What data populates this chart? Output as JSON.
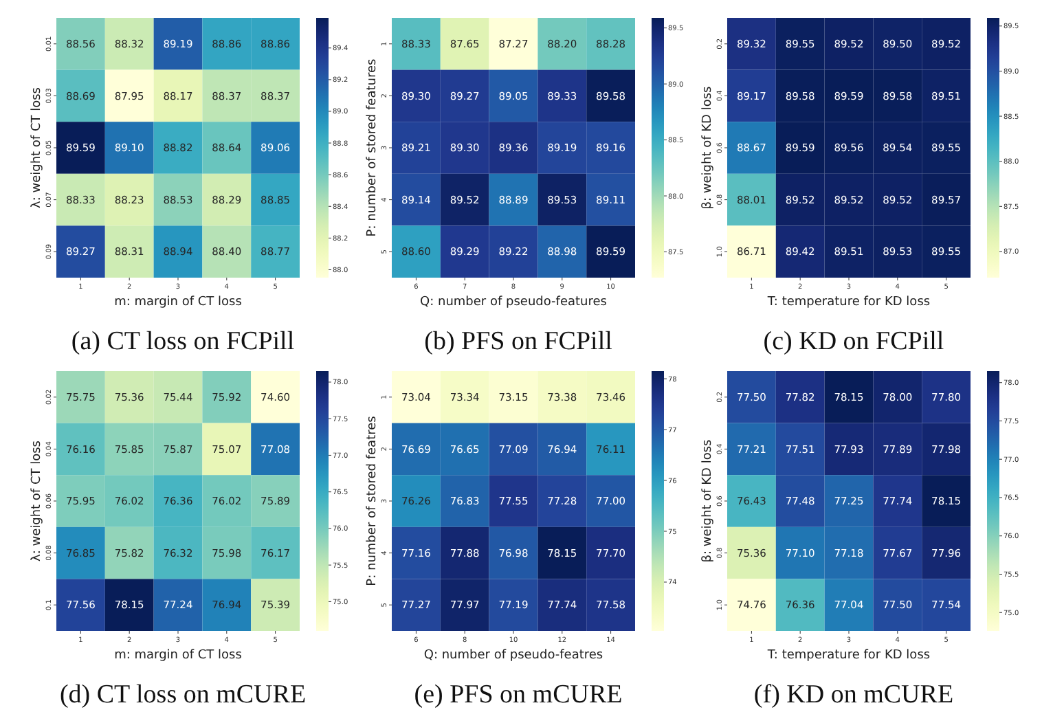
{
  "chart_data": [
    {
      "type": "heatmap",
      "title": "(a) CT loss on FCPill",
      "xlabel": "m: margin of CT loss",
      "ylabel": "λ: weight of CT loss",
      "categories": [
        "1",
        "2",
        "3",
        "4",
        "5"
      ],
      "y_categories": [
        "0.01",
        "0.03",
        "0.05",
        "0.07",
        "0.09"
      ],
      "cells": [
        [
          88.56,
          88.32,
          89.19,
          88.86,
          88.86
        ],
        [
          88.69,
          87.95,
          88.17,
          88.37,
          88.37
        ],
        [
          89.59,
          89.1,
          88.82,
          88.64,
          89.06
        ],
        [
          88.33,
          88.23,
          88.53,
          88.29,
          88.85
        ],
        [
          89.27,
          88.31,
          88.94,
          88.4,
          88.77
        ]
      ],
      "cell_labels": [
        [
          "88.56",
          "88.32",
          "89.19",
          "88.86",
          "88.86"
        ],
        [
          "88.69",
          "87.95",
          "88.17",
          "88.37",
          "88.37"
        ],
        [
          "89.59",
          "89.10",
          "88.82",
          "88.64",
          "89.06"
        ],
        [
          "88.33",
          "88.23",
          "88.53",
          "88.29",
          "88.85"
        ],
        [
          "89.27",
          "88.31",
          "88.94",
          "88.40",
          "88.77"
        ]
      ],
      "data_labels": true,
      "clim": [
        87.95,
        89.59
      ],
      "cticks": [
        {
          "value": 88,
          "label": "88.0"
        },
        {
          "value": 88.2,
          "label": "88.2"
        },
        {
          "value": 88.4,
          "label": "88.4"
        },
        {
          "value": 88.6,
          "label": "88.6"
        },
        {
          "value": 88.8,
          "label": "88.8"
        },
        {
          "value": 89,
          "label": "89.0"
        },
        {
          "value": 89.2,
          "label": "89.2"
        },
        {
          "value": 89.4,
          "label": "89.4"
        }
      ]
    },
    {
      "type": "heatmap",
      "title": "(b) PFS on FCPill",
      "xlabel": "Q: number of pseudo-features",
      "ylabel": "P: number of stored features",
      "categories": [
        "6",
        "7",
        "8",
        "9",
        "10"
      ],
      "y_categories": [
        "1",
        "2",
        "3",
        "4",
        "5"
      ],
      "cells": [
        [
          88.33,
          87.65,
          87.27,
          88.2,
          88.28
        ],
        [
          89.3,
          89.27,
          89.05,
          89.33,
          89.58
        ],
        [
          89.21,
          89.3,
          89.36,
          89.19,
          89.16
        ],
        [
          89.14,
          89.52,
          88.89,
          89.53,
          89.11
        ],
        [
          88.6,
          89.29,
          89.22,
          88.98,
          89.59
        ]
      ],
      "cell_labels": [
        [
          "88.33",
          "87.65",
          "87.27",
          "88.20",
          "88.28"
        ],
        [
          "89.30",
          "89.27",
          "89.05",
          "89.33",
          "89.58"
        ],
        [
          "89.21",
          "89.30",
          "89.36",
          "89.19",
          "89.16"
        ],
        [
          "89.14",
          "89.52",
          "88.89",
          "89.53",
          "89.11"
        ],
        [
          "88.60",
          "89.29",
          "89.22",
          "88.98",
          "89.59"
        ]
      ],
      "data_labels": true,
      "clim": [
        87.27,
        89.59
      ],
      "cticks": [
        87.5,
        {
          "value": 88,
          "label": "88.0"
        },
        88.5,
        {
          "value": 89,
          "label": "89.0"
        },
        89.5
      ]
    },
    {
      "type": "heatmap",
      "title": "(c) KD on FCPill",
      "xlabel": "T: temperature for KD loss",
      "ylabel": "β: weight of KD loss",
      "categories": [
        "1",
        "2",
        "3",
        "4",
        "5"
      ],
      "y_categories": [
        "0.2",
        "0.4",
        "0.6",
        "0.8",
        "1.0"
      ],
      "cells": [
        [
          89.32,
          89.55,
          89.52,
          89.5,
          89.52
        ],
        [
          89.17,
          89.58,
          89.59,
          89.58,
          89.51
        ],
        [
          88.67,
          89.59,
          89.56,
          89.54,
          89.55
        ],
        [
          88.01,
          89.52,
          89.52,
          89.52,
          89.57
        ],
        [
          86.71,
          89.42,
          89.51,
          89.53,
          89.55
        ]
      ],
      "cell_labels": [
        [
          "89.32",
          "89.55",
          "89.52",
          "89.50",
          "89.52"
        ],
        [
          "89.17",
          "89.58",
          "89.59",
          "89.58",
          "89.51"
        ],
        [
          "88.67",
          "89.59",
          "89.56",
          "89.54",
          "89.55"
        ],
        [
          "88.01",
          "89.52",
          "89.52",
          "89.52",
          "89.57"
        ],
        [
          "86.71",
          "89.42",
          "89.51",
          "89.53",
          "89.55"
        ]
      ],
      "data_labels": true,
      "clim": [
        86.71,
        89.59
      ],
      "cticks": [
        {
          "value": 87,
          "label": "87.0"
        },
        87.5,
        {
          "value": 88,
          "label": "88.0"
        },
        88.5,
        {
          "value": 89,
          "label": "89.0"
        },
        89.5
      ]
    },
    {
      "type": "heatmap",
      "title": "(d) CT loss on mCURE",
      "xlabel": "m: margin of CT loss",
      "ylabel": "λ: weight of CT loss",
      "categories": [
        "1",
        "2",
        "3",
        "4",
        "5"
      ],
      "y_categories": [
        "0.02",
        "0.04",
        "0.06",
        "0.08",
        "0.1"
      ],
      "cells": [
        [
          75.75,
          75.36,
          75.44,
          75.92,
          74.6
        ],
        [
          76.16,
          75.85,
          75.87,
          75.07,
          77.08
        ],
        [
          75.95,
          76.02,
          76.36,
          76.02,
          75.89
        ],
        [
          76.85,
          75.82,
          76.32,
          75.98,
          76.17
        ],
        [
          77.56,
          78.15,
          77.24,
          76.94,
          75.39
        ]
      ],
      "cell_labels": [
        [
          "75.75",
          "75.36",
          "75.44",
          "75.92",
          "74.60"
        ],
        [
          "76.16",
          "75.85",
          "75.87",
          "75.07",
          "77.08"
        ],
        [
          "75.95",
          "76.02",
          "76.36",
          "76.02",
          "75.89"
        ],
        [
          "76.85",
          "75.82",
          "76.32",
          "75.98",
          "76.17"
        ],
        [
          "77.56",
          "78.15",
          "77.24",
          "76.94",
          "75.39"
        ]
      ],
      "data_labels": true,
      "clim": [
        74.6,
        78.15
      ],
      "cticks": [
        {
          "value": 75,
          "label": "75.0"
        },
        75.5,
        {
          "value": 76,
          "label": "76.0"
        },
        76.5,
        {
          "value": 77,
          "label": "77.0"
        },
        77.5,
        {
          "value": 78,
          "label": "78.0"
        }
      ]
    },
    {
      "type": "heatmap",
      "title": "(e) PFS on mCURE",
      "xlabel": "Q: number of pseudo-featres",
      "ylabel": "P: number of stored featres",
      "categories": [
        "6",
        "8",
        "10",
        "12",
        "14"
      ],
      "y_categories": [
        "1",
        "2",
        "3",
        "4",
        "5"
      ],
      "cells": [
        [
          73.04,
          73.34,
          73.15,
          73.38,
          73.46
        ],
        [
          76.69,
          76.65,
          77.09,
          76.94,
          76.11
        ],
        [
          76.26,
          76.83,
          77.55,
          77.28,
          77.0
        ],
        [
          77.16,
          77.88,
          76.98,
          78.15,
          77.7
        ],
        [
          77.27,
          77.97,
          77.19,
          77.74,
          77.58
        ]
      ],
      "cell_labels": [
        [
          "73.04",
          "73.34",
          "73.15",
          "73.38",
          "73.46"
        ],
        [
          "76.69",
          "76.65",
          "77.09",
          "76.94",
          "76.11"
        ],
        [
          "76.26",
          "76.83",
          "77.55",
          "77.28",
          "77.00"
        ],
        [
          "77.16",
          "77.88",
          "76.98",
          "78.15",
          "77.70"
        ],
        [
          "77.27",
          "77.97",
          "77.19",
          "77.74",
          "77.58"
        ]
      ],
      "data_labels": true,
      "clim": [
        73.04,
        78.15
      ],
      "cticks": [
        74,
        75,
        76,
        77,
        78
      ]
    },
    {
      "type": "heatmap",
      "title": "(f) KD on mCURE",
      "xlabel": "T: temperature for KD loss",
      "ylabel": "β: weight of KD loss",
      "categories": [
        "1",
        "2",
        "3",
        "4",
        "5"
      ],
      "y_categories": [
        "0.2",
        "0.4",
        "0.6",
        "0.8",
        "1.0"
      ],
      "cells": [
        [
          77.5,
          77.82,
          78.15,
          78.0,
          77.8
        ],
        [
          77.21,
          77.51,
          77.93,
          77.89,
          77.98
        ],
        [
          76.43,
          77.48,
          77.25,
          77.74,
          78.15
        ],
        [
          75.36,
          77.1,
          77.18,
          77.67,
          77.96
        ],
        [
          74.76,
          76.36,
          77.04,
          77.5,
          77.54
        ]
      ],
      "cell_labels": [
        [
          "77.50",
          "77.82",
          "78.15",
          "78.00",
          "77.80"
        ],
        [
          "77.21",
          "77.51",
          "77.93",
          "77.89",
          "77.98"
        ],
        [
          "76.43",
          "77.48",
          "77.25",
          "77.74",
          "78.15"
        ],
        [
          "75.36",
          "77.10",
          "77.18",
          "77.67",
          "77.96"
        ],
        [
          "74.76",
          "76.36",
          "77.04",
          "77.50",
          "77.54"
        ]
      ],
      "data_labels": true,
      "clim": [
        74.76,
        78.15
      ],
      "cticks": [
        {
          "value": 75,
          "label": "75.0"
        },
        75.5,
        {
          "value": 76,
          "label": "76.0"
        },
        76.5,
        {
          "value": 77,
          "label": "77.0"
        },
        77.5,
        {
          "value": 78,
          "label": "78.0"
        }
      ]
    }
  ]
}
